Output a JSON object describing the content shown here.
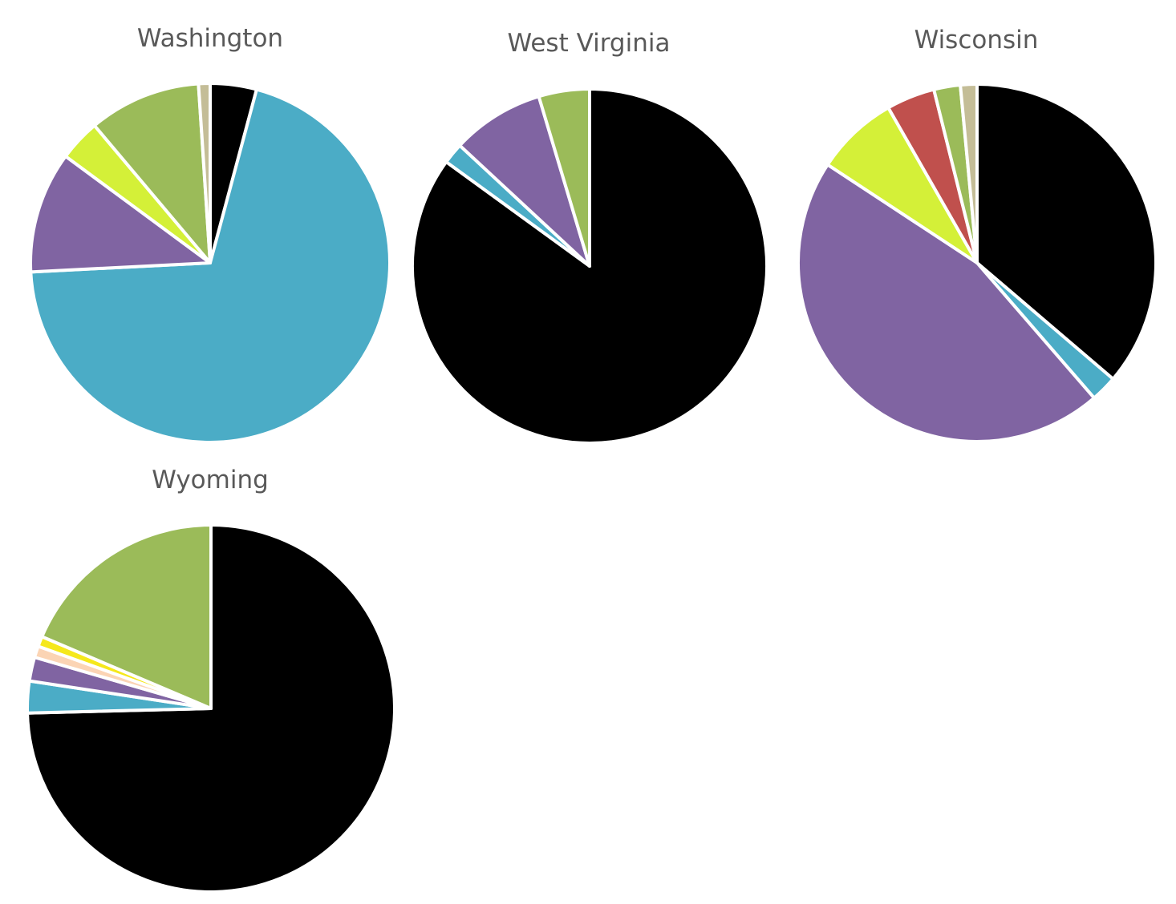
{
  "palette": {
    "black": "#000000",
    "teal": "#4bacc6",
    "purple": "#8064a2",
    "lime": "#d4f038",
    "olive": "#9bbb59",
    "tan": "#c4bd97",
    "red": "#c0504d",
    "yellow": "#f5e81c",
    "peach": "#fbd4b4",
    "edge": "#ffffff"
  },
  "chart_data": [
    {
      "type": "pie",
      "title": "Washington",
      "slices": [
        {
          "value": 4.0,
          "color": "black"
        },
        {
          "value": 67.3,
          "color": "teal"
        },
        {
          "value": 10.5,
          "color": "purple"
        },
        {
          "value": 3.6,
          "color": "lime"
        },
        {
          "value": 9.7,
          "color": "olive"
        },
        {
          "value": 1.0,
          "color": "tan"
        }
      ]
    },
    {
      "type": "pie",
      "title": "West Virginia",
      "slices": [
        {
          "value": 84.5,
          "color": "black"
        },
        {
          "value": 1.9,
          "color": "teal"
        },
        {
          "value": 8.4,
          "color": "purple"
        },
        {
          "value": 4.6,
          "color": "olive"
        }
      ]
    },
    {
      "type": "pie",
      "title": "Wisconsin",
      "slices": [
        {
          "value": 36.4,
          "color": "black"
        },
        {
          "value": 2.4,
          "color": "teal"
        },
        {
          "value": 45.8,
          "color": "purple"
        },
        {
          "value": 7.5,
          "color": "lime"
        },
        {
          "value": 4.4,
          "color": "red"
        },
        {
          "value": 2.4,
          "color": "olive"
        },
        {
          "value": 1.5,
          "color": "tan"
        }
      ]
    },
    {
      "type": "pie",
      "title": "Wyoming",
      "slices": [
        {
          "value": 74.6,
          "color": "black"
        },
        {
          "value": 2.8,
          "color": "teal"
        },
        {
          "value": 2.1,
          "color": "purple"
        },
        {
          "value": 1.0,
          "color": "peach"
        },
        {
          "value": 0.9,
          "color": "yellow"
        },
        {
          "value": 18.6,
          "color": "olive"
        }
      ]
    }
  ]
}
